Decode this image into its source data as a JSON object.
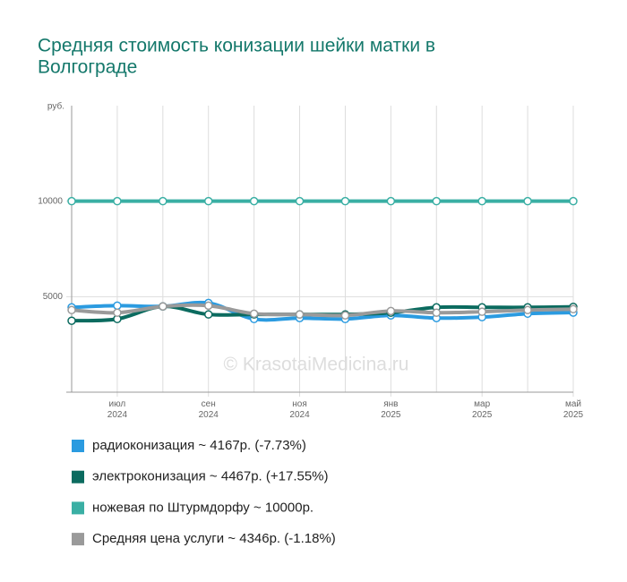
{
  "chart_data": {
    "type": "line",
    "title": [
      "Средняя стоимость конизации шейки матки в",
      "Волгограде"
    ],
    "y_label": "руб.",
    "watermark": "© KrasotaiMedicina.ru",
    "categories": [
      null,
      "июл 2024",
      null,
      "сен 2024",
      null,
      "ноя 2024",
      null,
      "янв 2025",
      null,
      "мар 2025",
      null,
      "май 2025"
    ],
    "ylim": [
      0,
      15000
    ],
    "yticks": [
      5000,
      10000
    ],
    "grid": true,
    "series": [
      {
        "name": "радиоконизация ~ 4167р. (-7.73%)",
        "color": "#2b9be0",
        "values": [
          4440,
          4530,
          4490,
          4670,
          3830,
          3880,
          3830,
          4020,
          3880,
          3930,
          4110,
          4167
        ]
      },
      {
        "name": "электроконизация ~ 4467р. (+17.55%)",
        "color": "#0b6b5f",
        "values": [
          3740,
          3830,
          4490,
          4070,
          4070,
          4070,
          4070,
          4160,
          4440,
          4440,
          4440,
          4467
        ]
      },
      {
        "name": "ножевая по Штурмдорфу ~ 10000р.",
        "color": "#3aafa4",
        "values": [
          10000,
          10000,
          10000,
          10000,
          10000,
          10000,
          10000,
          10000,
          10000,
          10000,
          10000,
          10000
        ]
      },
      {
        "name": "Средняя цена услуги ~ 4346р. (-1.18%)",
        "color": "#9a9a9a",
        "values": [
          4300,
          4160,
          4490,
          4530,
          4110,
          4070,
          4020,
          4250,
          4160,
          4210,
          4300,
          4346
        ]
      }
    ]
  }
}
